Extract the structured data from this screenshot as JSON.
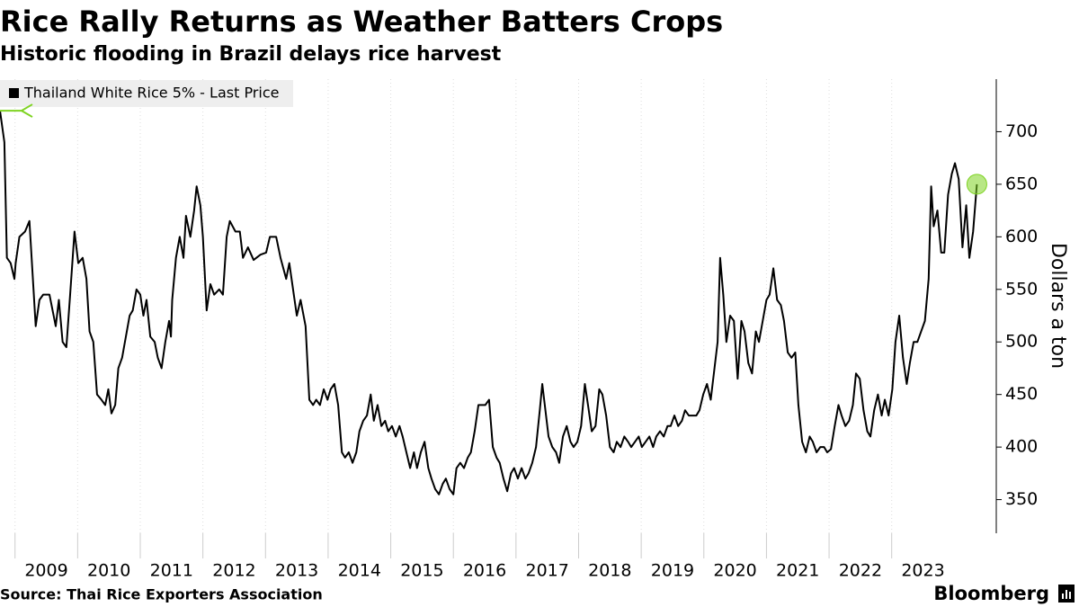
{
  "chart_data": {
    "type": "line",
    "title": "Rice Rally Returns as Weather Batters Crops",
    "subtitle": "Historic flooding in Brazil delays rice harvest",
    "y_label": "Dollars a ton",
    "source": "Source: Thai Rice Exporters Association",
    "brand": "Bloomberg",
    "legend": "top-left",
    "y_axis_side": "right",
    "grid": true,
    "annotate_max": true,
    "highlight_last": true,
    "annotation_color": "#7ed321",
    "xlim": [
      2008.76,
      2024.67
    ],
    "xticks": [
      2009,
      2010,
      2011,
      2012,
      2013,
      2014,
      2015,
      2016,
      2017,
      2018,
      2019,
      2020,
      2021,
      2022,
      2023
    ],
    "ylim": [
      318,
      750
    ],
    "yticks": [
      350,
      400,
      450,
      500,
      550,
      600,
      650,
      700
    ],
    "x": [
      2008.76,
      2008.83,
      2008.87,
      2008.93,
      2008.99,
      2009.01,
      2009.07,
      2009.16,
      2009.23,
      2009.27,
      2009.33,
      2009.39,
      2009.45,
      2009.55,
      2009.65,
      2009.7,
      2009.76,
      2009.82,
      2009.88,
      2009.95,
      2010.01,
      2010.08,
      2010.14,
      2010.19,
      2010.25,
      2010.31,
      2010.38,
      2010.44,
      2010.49,
      2010.54,
      2010.6,
      2010.65,
      2010.71,
      2010.77,
      2010.83,
      2010.88,
      2010.94,
      2011.0,
      2011.05,
      2011.1,
      2011.16,
      2011.23,
      2011.28,
      2011.34,
      2011.4,
      2011.46,
      2011.49,
      2011.51,
      2011.57,
      2011.63,
      2011.69,
      2011.73,
      2011.8,
      2011.86,
      2011.9,
      2011.96,
      2012.0,
      2012.06,
      2012.12,
      2012.18,
      2012.26,
      2012.32,
      2012.38,
      2012.43,
      2012.52,
      2012.59,
      2012.64,
      2012.72,
      2012.81,
      2012.92,
      2013.01,
      2013.07,
      2013.17,
      2013.24,
      2013.33,
      2013.38,
      2013.44,
      2013.5,
      2013.56,
      2013.64,
      2013.7,
      2013.76,
      2013.81,
      2013.87,
      2013.93,
      2013.99,
      2014.04,
      2014.1,
      2014.16,
      2014.22,
      2014.27,
      2014.33,
      2014.39,
      2014.45,
      2014.5,
      2014.56,
      2014.62,
      2014.68,
      2014.73,
      2014.79,
      2014.85,
      2014.91,
      2014.96,
      2015.02,
      2015.08,
      2015.14,
      2015.19,
      2015.25,
      2015.31,
      2015.37,
      2015.42,
      2015.48,
      2015.54,
      2015.6,
      2015.65,
      2015.71,
      2015.77,
      2015.83,
      2015.88,
      2015.94,
      2016.0,
      2016.05,
      2016.11,
      2016.17,
      2016.23,
      2016.28,
      2016.34,
      2016.4,
      2016.46,
      2016.51,
      2016.57,
      2016.63,
      2016.69,
      2016.74,
      2016.8,
      2016.86,
      2016.92,
      2016.97,
      2017.03,
      2017.09,
      2017.15,
      2017.2,
      2017.26,
      2017.32,
      2017.38,
      2017.42,
      2017.46,
      2017.52,
      2017.58,
      2017.64,
      2017.69,
      2017.75,
      2017.81,
      2017.87,
      2017.92,
      2017.98,
      2018.04,
      2018.1,
      2018.15,
      2018.21,
      2018.27,
      2018.33,
      2018.38,
      2018.44,
      2018.5,
      2018.56,
      2018.61,
      2018.67,
      2018.73,
      2018.79,
      2018.84,
      2018.9,
      2018.96,
      2019.01,
      2019.07,
      2019.13,
      2019.19,
      2019.24,
      2019.3,
      2019.36,
      2019.42,
      2019.47,
      2019.53,
      2019.59,
      2019.65,
      2019.7,
      2019.76,
      2019.82,
      2019.88,
      2019.93,
      2019.99,
      2020.05,
      2020.11,
      2020.16,
      2020.22,
      2020.26,
      2020.31,
      2020.36,
      2020.42,
      2020.48,
      2020.54,
      2020.6,
      2020.65,
      2020.71,
      2020.77,
      2020.83,
      2020.88,
      2020.94,
      2021.0,
      2021.05,
      2021.11,
      2021.17,
      2021.23,
      2021.28,
      2021.34,
      2021.4,
      2021.46,
      2021.51,
      2021.57,
      2021.63,
      2021.69,
      2021.74,
      2021.8,
      2021.86,
      2021.92,
      2021.97,
      2022.03,
      2022.09,
      2022.15,
      2022.2,
      2022.26,
      2022.32,
      2022.38,
      2022.43,
      2022.49,
      2022.55,
      2022.61,
      2022.66,
      2022.72,
      2022.78,
      2022.84,
      2022.89,
      2022.95,
      2023.01,
      2023.06,
      2023.12,
      2023.18,
      2023.24,
      2023.29,
      2023.35,
      2023.41,
      2023.47,
      2023.53,
      2023.59,
      2023.63,
      2023.67,
      2023.73,
      2023.79,
      2023.84,
      2023.9,
      2023.96,
      2024.01,
      2024.07,
      2024.13,
      2024.19,
      2024.24,
      2024.3,
      2024.36
    ],
    "series": [
      {
        "name": "Thailand White Rice 5% - Last Price",
        "color": "#000000",
        "values": [
          720,
          690,
          580,
          575,
          560,
          575,
          600,
          605,
          615,
          575,
          515,
          540,
          545,
          545,
          515,
          540,
          500,
          495,
          545,
          605,
          575,
          580,
          560,
          510,
          500,
          450,
          445,
          440,
          455,
          432,
          440,
          475,
          485,
          505,
          525,
          530,
          550,
          545,
          525,
          540,
          505,
          500,
          485,
          475,
          500,
          520,
          505,
          540,
          580,
          600,
          580,
          620,
          600,
          625,
          648,
          630,
          600,
          530,
          555,
          545,
          550,
          545,
          600,
          615,
          605,
          605,
          580,
          590,
          578,
          583,
          585,
          600,
          600,
          580,
          560,
          575,
          550,
          525,
          540,
          515,
          445,
          440,
          445,
          440,
          455,
          445,
          455,
          460,
          440,
          395,
          390,
          395,
          385,
          395,
          415,
          425,
          430,
          450,
          425,
          440,
          420,
          425,
          415,
          420,
          410,
          420,
          410,
          395,
          380,
          395,
          380,
          395,
          405,
          380,
          370,
          360,
          355,
          365,
          370,
          360,
          355,
          380,
          385,
          380,
          390,
          395,
          415,
          440,
          440,
          440,
          445,
          400,
          390,
          385,
          370,
          358,
          375,
          380,
          370,
          380,
          370,
          375,
          385,
          400,
          435,
          460,
          440,
          410,
          400,
          395,
          385,
          410,
          420,
          405,
          400,
          405,
          420,
          460,
          440,
          415,
          420,
          455,
          450,
          430,
          400,
          395,
          405,
          400,
          410,
          405,
          400,
          405,
          410,
          400,
          405,
          410,
          400,
          410,
          415,
          410,
          420,
          420,
          430,
          420,
          425,
          435,
          430,
          430,
          430,
          435,
          450,
          460,
          445,
          470,
          500,
          580,
          545,
          500,
          525,
          520,
          465,
          520,
          510,
          480,
          470,
          510,
          500,
          520,
          540,
          545,
          570,
          540,
          535,
          520,
          490,
          485,
          490,
          440,
          405,
          395,
          410,
          405,
          395,
          400,
          400,
          395,
          398,
          420,
          440,
          430,
          420,
          425,
          440,
          470,
          465,
          435,
          415,
          410,
          435,
          450,
          430,
          445,
          430,
          455,
          500,
          525,
          485,
          460,
          480,
          500,
          500,
          510,
          520,
          560,
          648,
          610,
          625,
          585,
          585,
          640,
          660,
          670,
          655,
          590,
          630,
          580,
          605,
          650
        ]
      }
    ]
  }
}
